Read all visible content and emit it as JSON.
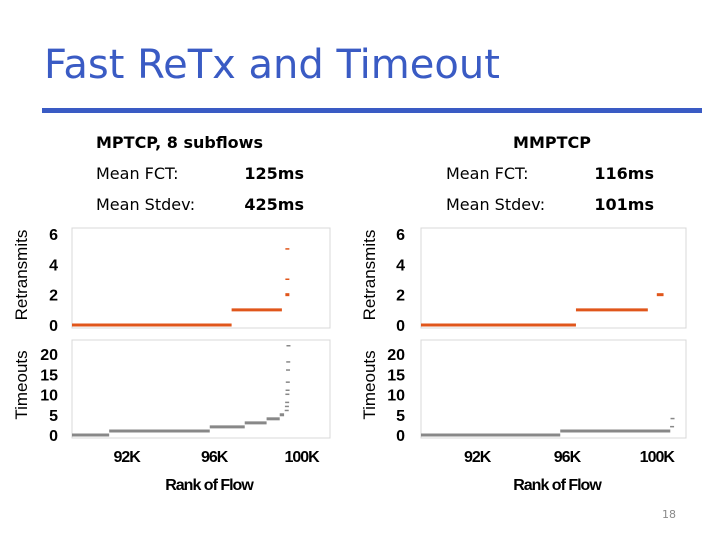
{
  "slide": {
    "title": "Fast ReTx and Timeout",
    "page_number": "18",
    "accent_color": "#3a5bc4"
  },
  "left_info": {
    "header": "MPTCP, 8 subflows",
    "fct_label": "Mean FCT:",
    "fct_value": "125ms",
    "stdev_label": "Mean Stdev:",
    "stdev_value": "425ms"
  },
  "right_info": {
    "header": "MMPTCP",
    "fct_label": "Mean FCT:",
    "fct_value": "116ms",
    "stdev_label": "Mean Stdev:",
    "stdev_value": "101ms"
  },
  "chart_data": [
    {
      "type": "scatter",
      "panel": "MPTCP retransmits",
      "ylabel": "Retransmits",
      "ylim": [
        0,
        6
      ],
      "yticks": [
        "0",
        "2",
        "4",
        "6"
      ],
      "xlim": [
        89500,
        101300
      ],
      "color": "#e0561b",
      "segments": [
        {
          "x": [
            89500,
            96800
          ],
          "y": 0
        },
        {
          "x": [
            96800,
            99100
          ],
          "y": 1
        }
      ],
      "points": [
        {
          "x": 99350,
          "y": 2,
          "w": 2
        },
        {
          "x": 99350,
          "y": 3,
          "w": 1
        },
        {
          "x": 99350,
          "y": 5,
          "w": 1
        }
      ]
    },
    {
      "type": "scatter",
      "panel": "MPTCP timeouts",
      "ylabel": "Timeouts",
      "xlabel": "Rank of Flow",
      "ylim": [
        0,
        22
      ],
      "yticks": [
        "0",
        "5",
        "10",
        "15",
        "20"
      ],
      "xlim": [
        89500,
        101300
      ],
      "xticks": [
        "92K",
        "96K",
        "100K"
      ],
      "xtick_values": [
        92000,
        96000,
        100000
      ],
      "color": "#888888",
      "segments": [
        {
          "x": [
            89500,
            91200
          ],
          "y": 0
        },
        {
          "x": [
            91200,
            95800
          ],
          "y": 1
        },
        {
          "x": [
            95800,
            97400
          ],
          "y": 2
        },
        {
          "x": [
            97400,
            98400
          ],
          "y": 3
        },
        {
          "x": [
            98400,
            99000
          ],
          "y": 4
        },
        {
          "x": [
            99000,
            99200
          ],
          "y": 5
        }
      ],
      "points": [
        {
          "x": 99320,
          "y": 6
        },
        {
          "x": 99330,
          "y": 7
        },
        {
          "x": 99340,
          "y": 8
        },
        {
          "x": 99350,
          "y": 10
        },
        {
          "x": 99360,
          "y": 11
        },
        {
          "x": 99370,
          "y": 13
        },
        {
          "x": 99380,
          "y": 16
        },
        {
          "x": 99390,
          "y": 18
        },
        {
          "x": 99400,
          "y": 22
        }
      ]
    },
    {
      "type": "scatter",
      "panel": "MMPTCP retransmits",
      "ylabel": "Retransmits",
      "ylim": [
        0,
        6
      ],
      "yticks": [
        "0",
        "2",
        "4",
        "6"
      ],
      "xlim": [
        89500,
        101300
      ],
      "color": "#e0561b",
      "segments": [
        {
          "x": [
            89500,
            96400
          ],
          "y": 0
        },
        {
          "x": [
            96400,
            99600
          ],
          "y": 1
        },
        {
          "x": [
            100000,
            100300
          ],
          "y": 2
        }
      ],
      "points": []
    },
    {
      "type": "scatter",
      "panel": "MMPTCP timeouts",
      "ylabel": "Timeouts",
      "xlabel": "Rank of Flow",
      "ylim": [
        0,
        22
      ],
      "yticks": [
        "0",
        "5",
        "10",
        "15",
        "20"
      ],
      "xlim": [
        89500,
        101300
      ],
      "xticks": [
        "92K",
        "96K",
        "100K"
      ],
      "xtick_values": [
        92000,
        96000,
        100000
      ],
      "color": "#888888",
      "segments": [
        {
          "x": [
            89500,
            95700
          ],
          "y": 0
        },
        {
          "x": [
            95700,
            100600
          ],
          "y": 1
        }
      ],
      "points": [
        {
          "x": 100680,
          "y": 2
        },
        {
          "x": 100700,
          "y": 4
        }
      ]
    }
  ]
}
